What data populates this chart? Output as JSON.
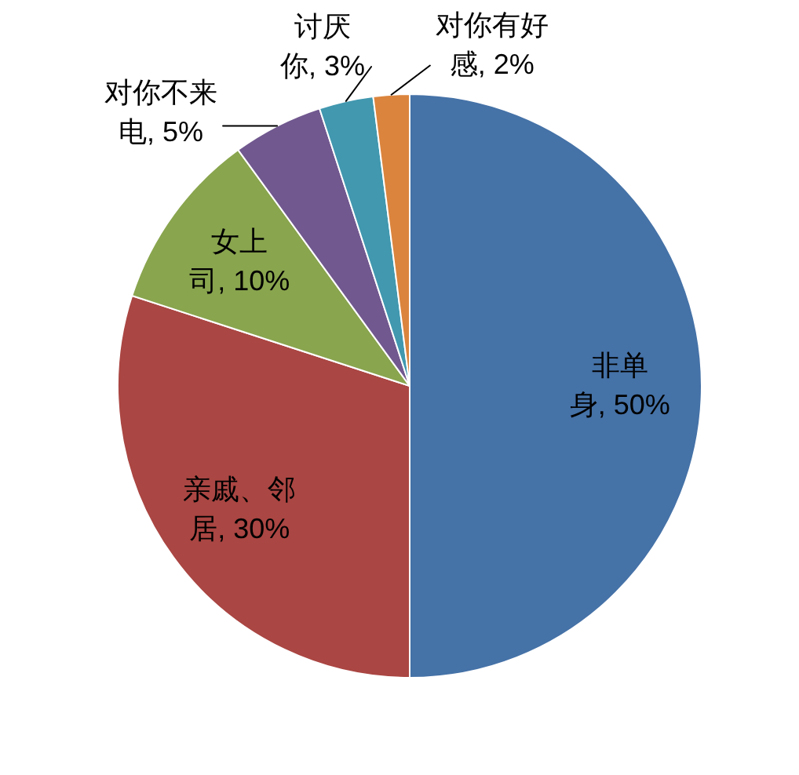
{
  "chart_data": {
    "type": "pie",
    "categories": [
      "非单身",
      "亲戚、邻居",
      "女上司",
      "对你不来电",
      "讨厌你",
      "对你有好感"
    ],
    "values": [
      50,
      30,
      10,
      5,
      3,
      2
    ],
    "colors": [
      "#4572a7",
      "#aa4643",
      "#89a54e",
      "#71588f",
      "#4198af",
      "#db843d"
    ],
    "value_labels": [
      "50%",
      "30%",
      "10%",
      "5%",
      "3%",
      "2%"
    ]
  }
}
